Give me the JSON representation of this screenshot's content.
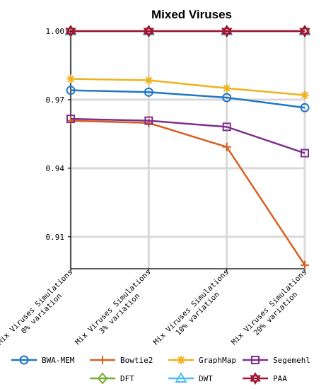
{
  "chart_data": {
    "type": "line",
    "title": "Mixed Viruses",
    "xlabel": "",
    "ylabel": "",
    "categories": [
      [
        "Mix Viruses Simulations",
        "0% variation"
      ],
      [
        "Mix Viruses Simulations",
        "3% variation"
      ],
      [
        "Mix Viruses Simulations",
        "10% variation"
      ],
      [
        "Mix Viruses Simulations",
        "20% variation"
      ]
    ],
    "ylim": [
      0.896,
      1.0
    ],
    "yticks": [
      0.91,
      0.94,
      0.97,
      1.0
    ],
    "ytick_labels": [
      "0.91",
      "0.94",
      "0.97",
      "1.00"
    ],
    "grid": true,
    "legend_position": "bottom",
    "series": [
      {
        "name": "BWA-MEM",
        "color": "#1f77c4",
        "marker": "circle",
        "values": [
          0.9741,
          0.9733,
          0.9709,
          0.9665
        ]
      },
      {
        "name": "Bowtie2",
        "color": "#d95f1e",
        "marker": "plus",
        "values": [
          0.9608,
          0.9598,
          0.9493,
          0.8976
        ]
      },
      {
        "name": "GraphMap",
        "color": "#eeb220",
        "marker": "asterisk",
        "values": [
          0.9791,
          0.9785,
          0.975,
          0.972
        ]
      },
      {
        "name": "Segemehl",
        "color": "#7e2f8e",
        "marker": "square",
        "values": [
          0.9616,
          0.9608,
          0.9581,
          0.9466
        ]
      },
      {
        "name": "DFT",
        "color": "#77ac30",
        "marker": "diamond",
        "values": [
          1.0,
          1.0,
          1.0,
          1.0
        ]
      },
      {
        "name": "DWT",
        "color": "#4dbeee",
        "marker": "triangle",
        "values": [
          1.0,
          1.0,
          1.0,
          1.0
        ]
      },
      {
        "name": "PAA",
        "color": "#a2142f",
        "marker": "hexagram",
        "values": [
          1.0,
          1.0,
          1.0,
          1.0
        ]
      }
    ]
  }
}
